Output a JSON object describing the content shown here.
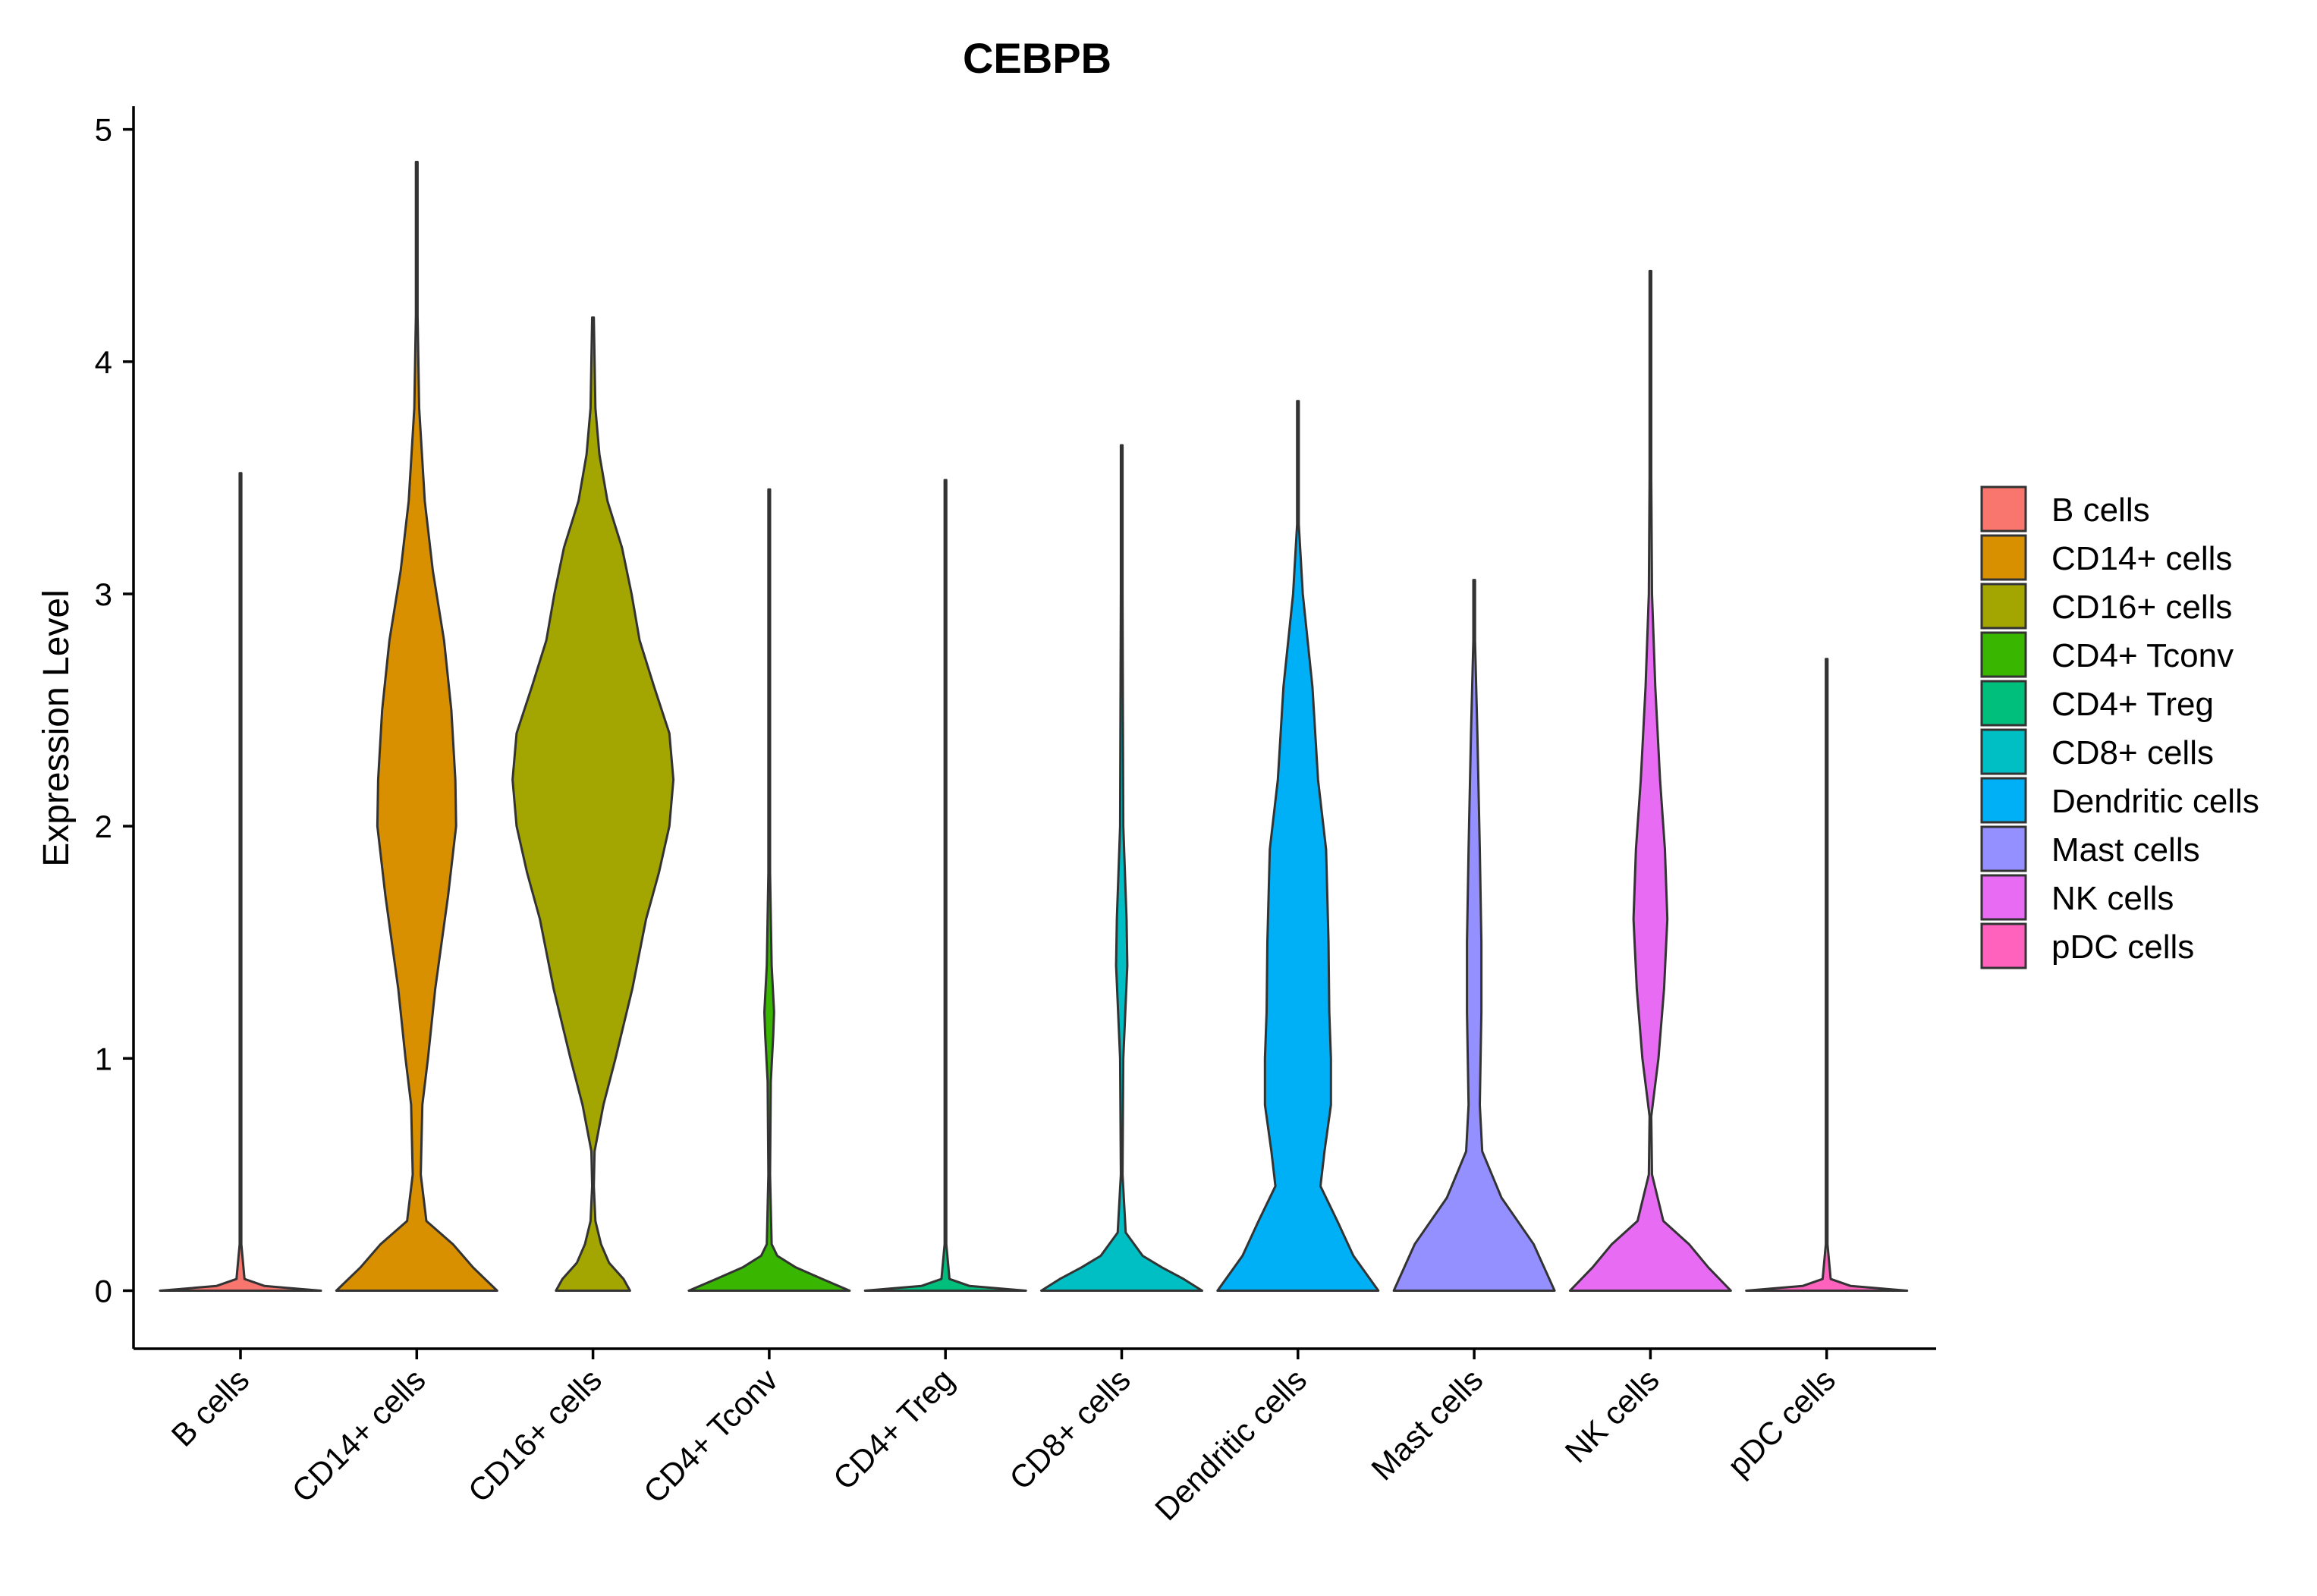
{
  "chart_data": {
    "type": "violin",
    "title": "CEBPB",
    "xlabel": "",
    "ylabel": "Expression Level",
    "ylim": [
      -0.25,
      5.1
    ],
    "yticks": [
      0,
      1,
      2,
      3,
      4,
      5
    ],
    "ytick_labels": [
      "0",
      "1",
      "2",
      "3",
      "4",
      "5"
    ],
    "grid": false,
    "legend_position": "right",
    "categories": [
      "B cells",
      "CD14+ cells",
      "CD16+ cells",
      "CD4+ Tconv",
      "CD4+ Treg",
      "CD8+ cells",
      "Dendritic cells",
      "Mast cells",
      "NK cells",
      "pDC cells"
    ],
    "colors": [
      "#F8766D",
      "#D89000",
      "#A3A500",
      "#39B600",
      "#00BF7D",
      "#00BFC4",
      "#00B0F6",
      "#9590FF",
      "#E76BF3",
      "#FF62BC"
    ],
    "series": [
      {
        "name": "B cells",
        "max": 3.52,
        "density": [
          [
            0,
            1.0
          ],
          [
            0.02,
            0.3
          ],
          [
            0.05,
            0.05
          ],
          [
            0.2,
            0.01
          ],
          [
            3.52,
            0.01
          ]
        ]
      },
      {
        "name": "CD14+ cells",
        "max": 4.86,
        "density": [
          [
            0,
            1.0
          ],
          [
            0.1,
            0.7
          ],
          [
            0.2,
            0.45
          ],
          [
            0.3,
            0.12
          ],
          [
            0.5,
            0.05
          ],
          [
            0.8,
            0.07
          ],
          [
            1.0,
            0.14
          ],
          [
            1.3,
            0.23
          ],
          [
            1.7,
            0.39
          ],
          [
            2.0,
            0.49
          ],
          [
            2.2,
            0.48
          ],
          [
            2.5,
            0.43
          ],
          [
            2.8,
            0.34
          ],
          [
            3.1,
            0.2
          ],
          [
            3.4,
            0.1
          ],
          [
            3.8,
            0.03
          ],
          [
            4.2,
            0.01
          ],
          [
            4.86,
            0.01
          ]
        ]
      },
      {
        "name": "CD16+ cells",
        "max": 4.19,
        "density": [
          [
            0,
            0.46
          ],
          [
            0.05,
            0.38
          ],
          [
            0.12,
            0.2
          ],
          [
            0.2,
            0.1
          ],
          [
            0.3,
            0.03
          ],
          [
            0.45,
            0.01
          ],
          [
            0.6,
            0.02
          ],
          [
            0.8,
            0.13
          ],
          [
            1.0,
            0.28
          ],
          [
            1.3,
            0.49
          ],
          [
            1.6,
            0.66
          ],
          [
            1.8,
            0.82
          ],
          [
            2.0,
            0.95
          ],
          [
            2.2,
            1.0
          ],
          [
            2.4,
            0.95
          ],
          [
            2.6,
            0.76
          ],
          [
            2.8,
            0.58
          ],
          [
            3.0,
            0.48
          ],
          [
            3.2,
            0.36
          ],
          [
            3.4,
            0.18
          ],
          [
            3.6,
            0.08
          ],
          [
            3.8,
            0.03
          ],
          [
            4.19,
            0.01
          ]
        ]
      },
      {
        "name": "CD4+ Tconv",
        "max": 3.45,
        "density": [
          [
            0,
            1.0
          ],
          [
            0.05,
            0.66
          ],
          [
            0.1,
            0.33
          ],
          [
            0.15,
            0.1
          ],
          [
            0.2,
            0.03
          ],
          [
            0.5,
            0.01
          ],
          [
            0.9,
            0.02
          ],
          [
            1.1,
            0.05
          ],
          [
            1.2,
            0.06
          ],
          [
            1.4,
            0.03
          ],
          [
            1.8,
            0.01
          ],
          [
            3.45,
            0.01
          ]
        ]
      },
      {
        "name": "CD4+ Treg",
        "max": 3.49,
        "density": [
          [
            0,
            1.0
          ],
          [
            0.02,
            0.3
          ],
          [
            0.05,
            0.05
          ],
          [
            0.2,
            0.01
          ],
          [
            3.49,
            0.01
          ]
        ]
      },
      {
        "name": "CD8+ cells",
        "max": 3.64,
        "density": [
          [
            0,
            1.0
          ],
          [
            0.05,
            0.77
          ],
          [
            0.1,
            0.5
          ],
          [
            0.15,
            0.26
          ],
          [
            0.25,
            0.05
          ],
          [
            0.5,
            0.01
          ],
          [
            1.0,
            0.02
          ],
          [
            1.4,
            0.07
          ],
          [
            1.6,
            0.06
          ],
          [
            2.0,
            0.02
          ],
          [
            3.0,
            0.01
          ],
          [
            3.64,
            0.01
          ]
        ]
      },
      {
        "name": "Dendritic cells",
        "max": 3.83,
        "density": [
          [
            0,
            1.0
          ],
          [
            0.15,
            0.69
          ],
          [
            0.3,
            0.49
          ],
          [
            0.45,
            0.28
          ],
          [
            0.6,
            0.33
          ],
          [
            0.8,
            0.41
          ],
          [
            1.0,
            0.41
          ],
          [
            1.2,
            0.39
          ],
          [
            1.5,
            0.38
          ],
          [
            1.9,
            0.35
          ],
          [
            2.2,
            0.25
          ],
          [
            2.6,
            0.18
          ],
          [
            3.0,
            0.06
          ],
          [
            3.3,
            0.01
          ],
          [
            3.83,
            0.01
          ]
        ]
      },
      {
        "name": "Mast cells",
        "max": 3.06,
        "density": [
          [
            0,
            1.0
          ],
          [
            0.2,
            0.74
          ],
          [
            0.4,
            0.34
          ],
          [
            0.6,
            0.1
          ],
          [
            0.8,
            0.07
          ],
          [
            1.2,
            0.09
          ],
          [
            1.5,
            0.09
          ],
          [
            1.9,
            0.07
          ],
          [
            2.4,
            0.04
          ],
          [
            2.8,
            0.01
          ],
          [
            3.06,
            0.01
          ]
        ]
      },
      {
        "name": "NK cells",
        "max": 4.39,
        "density": [
          [
            0,
            1.0
          ],
          [
            0.1,
            0.72
          ],
          [
            0.2,
            0.48
          ],
          [
            0.3,
            0.16
          ],
          [
            0.5,
            0.02
          ],
          [
            0.75,
            0.01
          ],
          [
            1.0,
            0.1
          ],
          [
            1.3,
            0.17
          ],
          [
            1.6,
            0.21
          ],
          [
            1.9,
            0.18
          ],
          [
            2.2,
            0.12
          ],
          [
            2.6,
            0.06
          ],
          [
            3.0,
            0.02
          ],
          [
            3.5,
            0.01
          ],
          [
            4.39,
            0.01
          ]
        ]
      },
      {
        "name": "pDC cells",
        "max": 2.72,
        "density": [
          [
            0,
            1.0
          ],
          [
            0.02,
            0.3
          ],
          [
            0.05,
            0.05
          ],
          [
            0.2,
            0.01
          ],
          [
            2.72,
            0.01
          ]
        ]
      }
    ]
  }
}
